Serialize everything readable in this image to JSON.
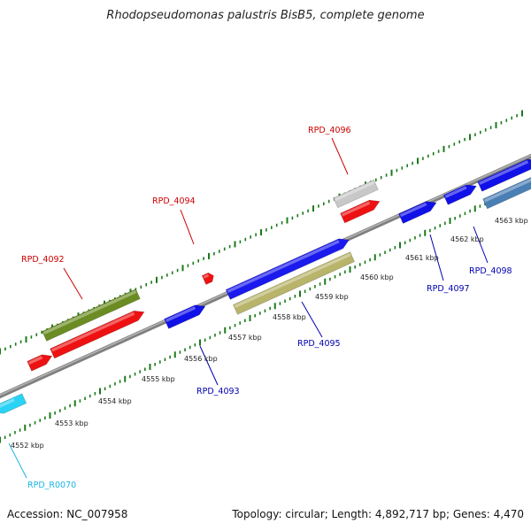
{
  "title": "Rhodopseudomonas palustris BisB5, complete genome",
  "accession_line": "Accession: NC_007958",
  "summary_line": "Topology: circular; Length: 4,892,717 bp; Genes: 4,470",
  "colors": {
    "backbone": "#8a8a8a",
    "ticks": "#1a7a1a",
    "ruler_label": "#222222",
    "forward_gene_label": "#cc0000",
    "reverse_gene_label": "#0000b0",
    "rna_label": "#19b5e0"
  },
  "scale_labels": [
    "4552 kbp",
    "4553 kbp",
    "4554 kbp",
    "4555 kbp",
    "4556 kbp",
    "4557 kbp",
    "4558 kbp",
    "4559 kbp",
    "4560 kbp",
    "4561 kbp",
    "4562 kbp",
    "4563 kbp"
  ],
  "gene_labels": [
    {
      "text": "RPD_4096",
      "kind": "forward"
    },
    {
      "text": "RPD_4094",
      "kind": "forward"
    },
    {
      "text": "RPD_4092",
      "kind": "forward"
    },
    {
      "text": "RPD_4095",
      "kind": "reverse"
    },
    {
      "text": "RPD_4093",
      "kind": "reverse"
    },
    {
      "text": "RPD_4097",
      "kind": "reverse"
    },
    {
      "text": "RPD_4098",
      "kind": "reverse"
    },
    {
      "text": "RPD_R0070",
      "kind": "rna"
    }
  ]
}
